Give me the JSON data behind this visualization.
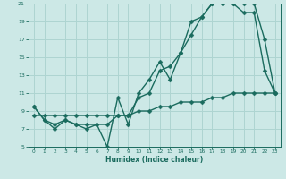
{
  "xlabel": "Humidex (Indice chaleur)",
  "bg_color": "#cce8e6",
  "line_color": "#1a6b5e",
  "grid_color": "#aed4d1",
  "xlim": [
    -0.5,
    23.5
  ],
  "ylim": [
    5,
    21
  ],
  "yticks": [
    5,
    7,
    9,
    11,
    13,
    15,
    17,
    19,
    21
  ],
  "xticks": [
    0,
    1,
    2,
    3,
    4,
    5,
    6,
    7,
    8,
    9,
    10,
    11,
    12,
    13,
    14,
    15,
    16,
    17,
    18,
    19,
    20,
    21,
    22,
    23
  ],
  "line1_x": [
    0,
    1,
    2,
    3,
    4,
    5,
    6,
    7,
    8,
    9,
    10,
    11,
    12,
    13,
    14,
    15,
    16,
    17,
    18,
    19,
    20,
    21,
    22,
    23
  ],
  "line1_y": [
    9.5,
    8.0,
    7.0,
    8.0,
    7.5,
    7.0,
    7.5,
    5.0,
    10.5,
    7.5,
    11.0,
    12.5,
    14.5,
    12.5,
    15.5,
    19.0,
    19.5,
    21.0,
    21.0,
    21.0,
    20.0,
    20.0,
    13.5,
    11.0
  ],
  "line2_x": [
    0,
    1,
    2,
    3,
    4,
    5,
    6,
    7,
    8,
    9,
    10,
    11,
    12,
    13,
    14,
    15,
    16,
    17,
    18,
    19,
    20,
    21,
    22,
    23
  ],
  "line2_y": [
    9.5,
    8.0,
    7.5,
    8.0,
    7.5,
    7.5,
    7.5,
    7.5,
    8.5,
    8.5,
    10.5,
    11.0,
    13.5,
    14.0,
    15.5,
    17.5,
    19.5,
    21.0,
    21.0,
    21.0,
    21.0,
    21.0,
    17.0,
    11.0
  ],
  "line3_x": [
    0,
    1,
    2,
    3,
    4,
    5,
    6,
    7,
    8,
    9,
    10,
    11,
    12,
    13,
    14,
    15,
    16,
    17,
    18,
    19,
    20,
    21,
    22,
    23
  ],
  "line3_y": [
    8.5,
    8.5,
    8.5,
    8.5,
    8.5,
    8.5,
    8.5,
    8.5,
    8.5,
    8.5,
    9.0,
    9.0,
    9.5,
    9.5,
    10.0,
    10.0,
    10.0,
    10.5,
    10.5,
    11.0,
    11.0,
    11.0,
    11.0,
    11.0
  ]
}
